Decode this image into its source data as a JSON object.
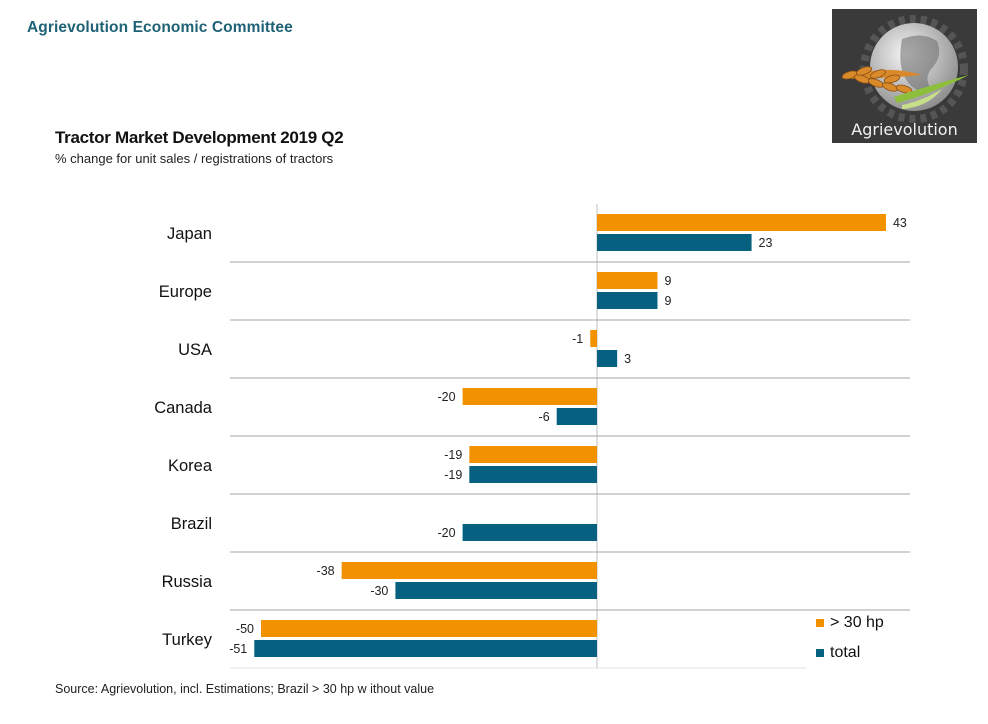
{
  "header": {
    "organization": "Agrievolution Economic Committee",
    "logo_text": "Agrievolution"
  },
  "colors": {
    "over_30hp": "#f39200",
    "total": "#05617f",
    "org_text": "#1f6275",
    "gridline": "#a6a6a6"
  },
  "chart_data": {
    "type": "bar",
    "orientation": "horizontal",
    "title": "Tractor Market Development 2019 Q2",
    "subtitle": "% change for unit sales / registrations of tractors",
    "xlabel": "",
    "ylabel": "",
    "xlim": [
      -52,
      44
    ],
    "categories": [
      "Japan",
      "Europe",
      "USA",
      "Canada",
      "Korea",
      "Brazil",
      "Russia",
      "Turkey"
    ],
    "series": [
      {
        "name": "> 30 hp",
        "color": "#f39200",
        "values": [
          43,
          9,
          -1,
          -20,
          -19,
          null,
          -38,
          -50
        ]
      },
      {
        "name": "total",
        "color": "#05617f",
        "values": [
          23,
          9,
          3,
          -6,
          -19,
          -20,
          -30,
          -51
        ]
      }
    ],
    "data_labels": true,
    "grid": "horizontal category separators",
    "legend": {
      "position": "bottom-right",
      "entries": [
        "> 30 hp",
        "total"
      ]
    }
  },
  "footer": {
    "source": "Source: Agrievolution, incl. Estimations; Brazil > 30 hp w ithout value"
  }
}
